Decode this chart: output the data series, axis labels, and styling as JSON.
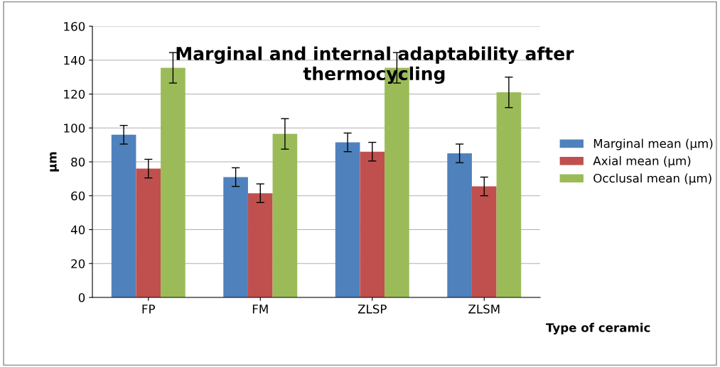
{
  "chart_data": {
    "type": "bar",
    "title": "Marginal and internal adaptability after\nthermocycling",
    "xlabel": "Type of ceramic",
    "ylabel": "µm",
    "categories": [
      "FP",
      "FM",
      "ZLSP",
      "ZLSM"
    ],
    "series": [
      {
        "name": "Marginal mean (µm)",
        "color": "#4f81bd",
        "values": [
          96,
          71,
          91.5,
          85
        ],
        "errors": [
          5.5,
          5.5,
          5.5,
          5.5
        ]
      },
      {
        "name": "Axial mean (µm)",
        "color": "#c0504d",
        "values": [
          76,
          61.5,
          86,
          65.5
        ],
        "errors": [
          5.5,
          5.5,
          5.5,
          5.5
        ]
      },
      {
        "name": "Occlusal mean (µm)",
        "color": "#9bbb59",
        "values": [
          135.5,
          96.5,
          135.5,
          121
        ],
        "errors": [
          9,
          9,
          9,
          9
        ]
      }
    ],
    "ylim": [
      0,
      160
    ],
    "yticks": [
      0,
      20,
      40,
      60,
      80,
      100,
      120,
      140,
      160
    ],
    "grid": "y",
    "legend": "right"
  }
}
